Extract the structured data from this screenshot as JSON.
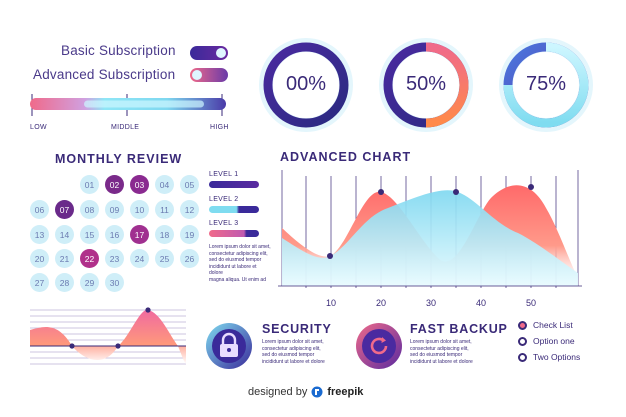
{
  "subscriptions": [
    {
      "label": "Basic Subscription",
      "state": "on"
    },
    {
      "label": "Advanced Subscription",
      "state": "off"
    }
  ],
  "range_slider": {
    "labels": [
      "LOW",
      "MIDDLE",
      "HIGH"
    ],
    "value": 0.5
  },
  "gauges": [
    {
      "label": "00%",
      "value": 0.0
    },
    {
      "label": "50%",
      "value": 0.5
    },
    {
      "label": "75%",
      "value": 0.75
    }
  ],
  "monthly_review": {
    "title": "MONTHLY REVIEW",
    "days": [
      "01",
      "02",
      "03",
      "04",
      "05",
      "06",
      "07",
      "08",
      "09",
      "10",
      "11",
      "12",
      "13",
      "14",
      "15",
      "16",
      "17",
      "18",
      "19",
      "20",
      "21",
      "22",
      "23",
      "24",
      "25",
      "26",
      "27",
      "28",
      "29",
      "30"
    ],
    "highlighted": [
      "02",
      "03",
      "07",
      "17",
      "22"
    ]
  },
  "levels": [
    {
      "label": "LEVEL 1",
      "value": 1.0
    },
    {
      "label": "LEVEL 2",
      "value": 0.6
    },
    {
      "label": "LEVEL 3",
      "value": 0.75
    }
  ],
  "levels_text": "Lorem ipsum dolor sit amet,\nconsectetur adipiscing elit,\nsed do eiusmod tempor\nincididunt ut labore et dolore\nmagna aliqua. Ut enim ad",
  "advanced_chart": {
    "title": "ADVANCED CHART",
    "x_ticks": [
      "10",
      "20",
      "30",
      "40",
      "50"
    ]
  },
  "chart_data": [
    {
      "type": "area",
      "title": "ADVANCED CHART",
      "x": [
        0,
        10,
        20,
        30,
        35,
        40,
        50,
        60
      ],
      "series": [
        {
          "values": [
            0.55,
            0.35,
            0.78,
            0.55,
            0.2,
            0.3,
            0.82,
            0.3
          ]
        },
        {
          "values": [
            0.3,
            0.15,
            0.45,
            0.8,
            0.78,
            0.65,
            0.4,
            0.25
          ]
        }
      ],
      "points": [
        {
          "x": 10,
          "y": 0.35
        },
        {
          "x": 20,
          "y": 0.78
        },
        {
          "x": 35,
          "y": 0.78
        },
        {
          "x": 50,
          "y": 0.82
        }
      ],
      "xlim": [
        0,
        60
      ],
      "ylim": [
        0,
        1
      ]
    },
    {
      "type": "area",
      "x": [
        0,
        10,
        20,
        30,
        40,
        50,
        60
      ],
      "series": [
        {
          "values": [
            0.55,
            0.6,
            0.0,
            0.02,
            0.95,
            0.55,
            0.1
          ]
        }
      ],
      "baseline": 0.4
    }
  ],
  "features": [
    {
      "title": "SECURITY",
      "text": "Lorem ipsum dolor sit amet,\nconsectetur adipiscing elit,\nsed do eiusmod tempor\nincididunt ut labore et dolore",
      "icon": "lock-icon"
    },
    {
      "title": "FAST BACKUP",
      "text": "Lorem ipsum dolor sit amet,\nconsectetur adipiscing elit,\nsed do eiusmod tempor\nincididunt ut labore et dolore",
      "icon": "refresh-icon"
    }
  ],
  "options": [
    {
      "label": "Check List",
      "checked": true
    },
    {
      "label": "Option one",
      "checked": false
    },
    {
      "label": "Two Options",
      "checked": false
    }
  ],
  "footer": {
    "prefix": "designed by",
    "brand": "freepik"
  },
  "colors": {
    "navy": "#3a2a78",
    "purple": "#6a2aa0",
    "pink": "#f06a8a",
    "orange": "#ff8a4a",
    "cyan": "#7fdcf0",
    "light": "#cfeef8"
  }
}
